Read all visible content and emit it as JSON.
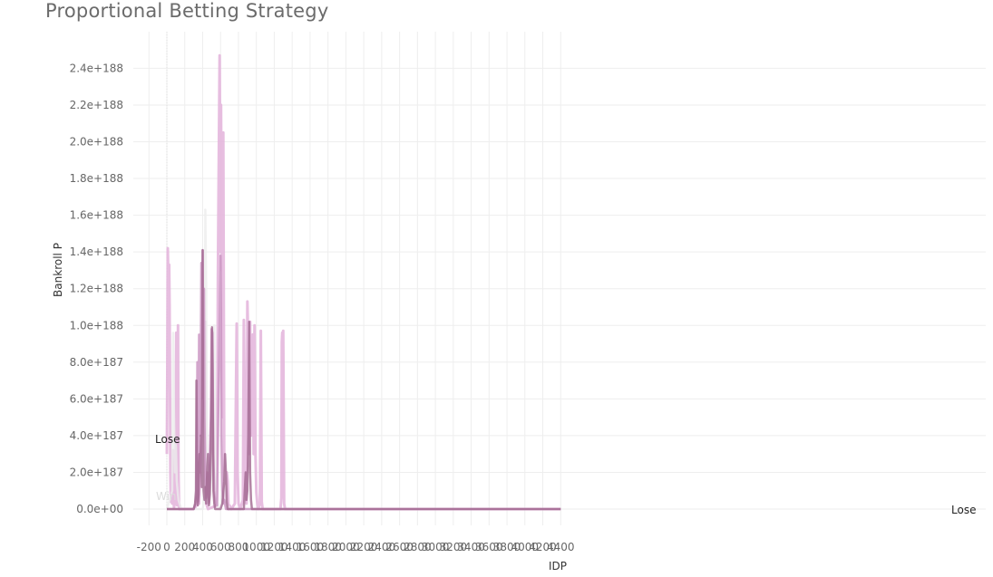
{
  "chart_data": {
    "type": "line",
    "title": "Proportional Betting Strategy",
    "xlabel": "IDP",
    "ylabel": "Bankroll P",
    "xlim": [
      -200,
      4400
    ],
    "ylim": [
      0,
      2.4e+188
    ],
    "x_ticks": [
      "-200",
      "0",
      "200",
      "400",
      "600",
      "800",
      "1000",
      "1200",
      "1400",
      "1600",
      "1800",
      "2000",
      "2200",
      "2400",
      "2600",
      "2800",
      "3000",
      "3200",
      "3400",
      "3600",
      "3800",
      "4000",
      "4200",
      "4400"
    ],
    "y_ticks": [
      "0.0e+00",
      "2.0e+187",
      "4.0e+187",
      "6.0e+187",
      "8.0e+187",
      "1.0e+188",
      "1.2e+188",
      "1.4e+188",
      "1.6e+188",
      "1.8e+188",
      "2.0e+188",
      "2.2e+188",
      "2.4e+188"
    ],
    "grid": true,
    "annotations": [
      {
        "text": "Lose",
        "x": 0,
        "y": 3.8e+187
      },
      {
        "text": "Win",
        "x": 0,
        "y": 5e+186
      },
      {
        "text": "Lose",
        "x": 4400,
        "y": 0
      }
    ],
    "series": [
      {
        "color": "#e3b3db",
        "points": [
          [
            0,
            3e+187
          ],
          [
            5,
            7.3e+187
          ],
          [
            10,
            1.42e+188
          ],
          [
            15,
            1.3e+188
          ],
          [
            20,
            1.05e+188
          ],
          [
            25,
            1.33e+188
          ],
          [
            30,
            1.1e+188
          ],
          [
            35,
            6e+187
          ],
          [
            40,
            2e+187
          ],
          [
            45,
            4e+186
          ],
          [
            55,
            6e+186
          ],
          [
            60,
            3e+186
          ],
          [
            70,
            3.2e+187
          ],
          [
            75,
            6e+186
          ],
          [
            80,
            1e+186
          ],
          [
            95,
            5e+186
          ],
          [
            100,
            2.5e+187
          ],
          [
            105,
            9.6e+187
          ],
          [
            110,
            3e+187
          ],
          [
            115,
            2e+186
          ],
          [
            120,
            1e+187
          ],
          [
            125,
            1e+188
          ],
          [
            130,
            2e+187
          ],
          [
            135,
            5e+186
          ],
          [
            140,
            0
          ],
          [
            300,
            0
          ],
          [
            310,
            5e+185
          ],
          [
            330,
            2e+186
          ],
          [
            350,
            1e+187
          ],
          [
            360,
            3e+186
          ],
          [
            430,
            1.02e+188
          ],
          [
            440,
            3e+186
          ],
          [
            460,
            0
          ],
          [
            560,
            2e+186
          ],
          [
            570,
            1.25e+188
          ],
          [
            580,
            1.85e+188
          ],
          [
            590,
            2.47e+188
          ],
          [
            600,
            1.4e+188
          ],
          [
            605,
            2.2e+188
          ],
          [
            610,
            1.7e+188
          ],
          [
            615,
            1.3e+188
          ],
          [
            620,
            1.63e+188
          ],
          [
            625,
            5e+187
          ],
          [
            630,
            2.05e+188
          ],
          [
            635,
            1.2e+188
          ],
          [
            640,
            3e+187
          ],
          [
            650,
            4e+186
          ],
          [
            660,
            6e+186
          ],
          [
            670,
            2e+187
          ],
          [
            680,
            1.5e+187
          ],
          [
            690,
            0
          ],
          [
            700,
            2e+186
          ],
          [
            720,
            0
          ],
          [
            760,
            3e+186
          ],
          [
            780,
            1.01e+188
          ],
          [
            790,
            2e+187
          ],
          [
            800,
            3e+186
          ],
          [
            820,
            0
          ],
          [
            850,
            5e+186
          ],
          [
            860,
            1.03e+188
          ],
          [
            870,
            5e+187
          ],
          [
            880,
            8e+186
          ],
          [
            890,
            3e+186
          ],
          [
            900,
            1.13e+188
          ],
          [
            910,
            9e+187
          ],
          [
            920,
            3e+187
          ],
          [
            930,
            1.02e+188
          ],
          [
            940,
            4e+187
          ],
          [
            950,
            6e+187
          ],
          [
            960,
            9.5e+187
          ],
          [
            970,
            3e+187
          ],
          [
            980,
            1e+188
          ],
          [
            990,
            3e+187
          ],
          [
            1000,
            9e+186
          ],
          [
            1010,
            3e+186
          ],
          [
            1020,
            0
          ],
          [
            1040,
            3e+186
          ],
          [
            1050,
            9.7e+187
          ],
          [
            1060,
            4e+186
          ],
          [
            1070,
            0
          ],
          [
            1270,
            0
          ],
          [
            1280,
            6e+186
          ],
          [
            1285,
            9.1e+187
          ],
          [
            1290,
            9.6e+187
          ],
          [
            1295,
            8e+187
          ],
          [
            1300,
            9.7e+187
          ],
          [
            1310,
            3e+186
          ],
          [
            1320,
            0
          ],
          [
            4400,
            0
          ]
        ]
      },
      {
        "color": "#c890bf",
        "points": [
          [
            0,
            0
          ],
          [
            300,
            0
          ],
          [
            320,
            3e+186
          ],
          [
            330,
            8e+186
          ],
          [
            335,
            3e+187
          ],
          [
            340,
            8e+187
          ],
          [
            345,
            3e+187
          ],
          [
            350,
            4e+186
          ],
          [
            360,
            9.5e+187
          ],
          [
            370,
            4e+187
          ],
          [
            380,
            9.2e+187
          ],
          [
            385,
            1.34e+188
          ],
          [
            390,
            6e+187
          ],
          [
            395,
            1.2e+188
          ],
          [
            400,
            1.41e+188
          ],
          [
            405,
            7e+187
          ],
          [
            410,
            9.3e+187
          ],
          [
            415,
            1.2e+188
          ],
          [
            420,
            5e+187
          ],
          [
            430,
            2e+187
          ],
          [
            440,
            6e+186
          ],
          [
            450,
            2e+187
          ],
          [
            460,
            1.2e+187
          ],
          [
            470,
            3e+186
          ],
          [
            480,
            3e+187
          ],
          [
            490,
            5e+187
          ],
          [
            500,
            9.8e+187
          ],
          [
            510,
            9.6e+187
          ],
          [
            520,
            3e+187
          ],
          [
            530,
            1e+187
          ],
          [
            540,
            3e+186
          ],
          [
            560,
            2e+186
          ],
          [
            600,
            1.38e+188
          ],
          [
            605,
            1.1e+188
          ],
          [
            610,
            4e+187
          ],
          [
            620,
            1e+187
          ],
          [
            630,
            3e+186
          ],
          [
            640,
            5e+186
          ],
          [
            660,
            0
          ],
          [
            4400,
            0
          ]
        ]
      },
      {
        "color": "#a0678f",
        "points": [
          [
            0,
            0
          ],
          [
            300,
            0
          ],
          [
            315,
            3e+186
          ],
          [
            325,
            1e+187
          ],
          [
            330,
            7e+187
          ],
          [
            335,
            3e+187
          ],
          [
            345,
            2e+186
          ],
          [
            355,
            8e+186
          ],
          [
            365,
            3e+187
          ],
          [
            375,
            2e+187
          ],
          [
            380,
            4e+187
          ],
          [
            390,
            1.2e+187
          ],
          [
            400,
            1.41e+188
          ],
          [
            405,
            3e+187
          ],
          [
            410,
            1e+187
          ],
          [
            420,
            5e+186
          ],
          [
            430,
            1.2e+187
          ],
          [
            440,
            3e+186
          ],
          [
            450,
            2e+187
          ],
          [
            460,
            3e+187
          ],
          [
            470,
            2e+186
          ],
          [
            480,
            8e+186
          ],
          [
            490,
            3e+187
          ],
          [
            500,
            6e+187
          ],
          [
            505,
            9.9e+187
          ],
          [
            510,
            8e+187
          ],
          [
            520,
            1e+187
          ],
          [
            530,
            3e+186
          ],
          [
            540,
            0
          ],
          [
            600,
            0
          ],
          [
            620,
            3e+186
          ],
          [
            640,
            1.5e+187
          ],
          [
            650,
            3e+187
          ],
          [
            660,
            2e+187
          ],
          [
            670,
            4e+186
          ],
          [
            680,
            0
          ],
          [
            860,
            0
          ],
          [
            870,
            1e+187
          ],
          [
            880,
            2e+187
          ],
          [
            890,
            5e+186
          ],
          [
            900,
            1e+187
          ],
          [
            910,
            4e+187
          ],
          [
            920,
            1.02e+188
          ],
          [
            930,
            2e+187
          ],
          [
            940,
            5e+186
          ],
          [
            950,
            0
          ],
          [
            4400,
            0
          ]
        ]
      },
      {
        "color": "#ececec",
        "points": [
          [
            0,
            0
          ],
          [
            30,
            5e+186
          ],
          [
            60,
            1e+187
          ],
          [
            70,
            9.6e+187
          ],
          [
            80,
            5e+187
          ],
          [
            90,
            2e+187
          ],
          [
            100,
            3.5e+187
          ],
          [
            110,
            1.5e+187
          ],
          [
            130,
            5e+186
          ],
          [
            160,
            0
          ],
          [
            300,
            0
          ],
          [
            400,
            0
          ],
          [
            420,
            6e+186
          ],
          [
            430,
            1.63e+188
          ],
          [
            440,
            1.2e+188
          ],
          [
            450,
            9e+186
          ],
          [
            470,
            3e+186
          ],
          [
            490,
            1.5e+187
          ],
          [
            510,
            2e+187
          ],
          [
            530,
            1e+188
          ],
          [
            540,
            3e+187
          ],
          [
            560,
            5e+186
          ],
          [
            580,
            0
          ],
          [
            600,
            0
          ],
          [
            650,
            2e+187
          ],
          [
            660,
            3e+186
          ],
          [
            700,
            0
          ],
          [
            4400,
            0
          ]
        ]
      }
    ]
  }
}
